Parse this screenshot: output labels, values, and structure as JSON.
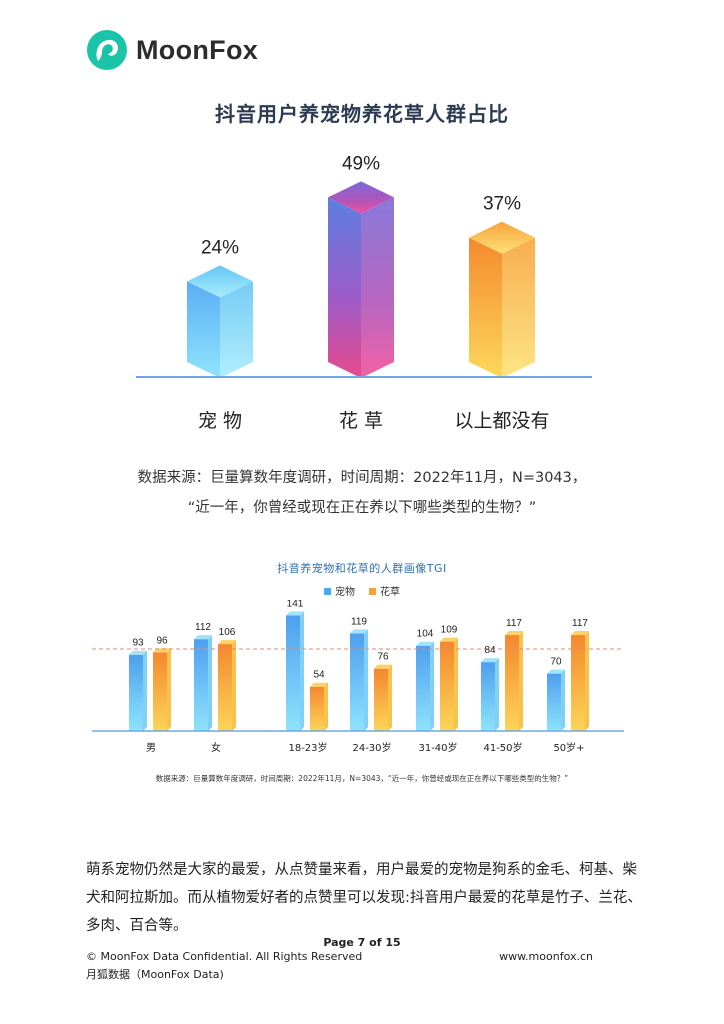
{
  "brand": {
    "name": "MoonFox",
    "logo_color": "#19c4a8"
  },
  "chart1": {
    "title": "抖音用户养宠物养花草人群占比",
    "source_line1": "数据来源：巨量算数年度调研，时间周期：2022年11月，N=3043，",
    "source_line2": "“近一年，你曾经或现在正在养以下哪些类型的生物？”"
  },
  "chart2": {
    "title": "抖音养宠物和花草的人群画像TGI",
    "source": "数据来源：巨量算数年度调研，时间周期：2022年11月，N=3043，“近一年，你曾经或现在正在养以下哪些类型的生物？”"
  },
  "chart_data": [
    {
      "type": "bar",
      "title": "抖音用户养宠物养花草人群占比",
      "categories": [
        "宠 物",
        "花 草",
        "以上都没有"
      ],
      "values": [
        24,
        49,
        37
      ],
      "value_labels": [
        "24%",
        "49%",
        "37%"
      ],
      "unit": "%",
      "colors": [
        "#5fc8f2",
        "#9a58c8",
        "#f7a43a"
      ],
      "grid": false,
      "legend": "none"
    },
    {
      "type": "bar",
      "title": "抖音养宠物和花草的人群画像TGI",
      "categories": [
        "男",
        "女",
        "18-23岁",
        "24-30岁",
        "31-40岁",
        "41-50岁",
        "50岁+"
      ],
      "series": [
        {
          "name": "宠物",
          "values": [
            93,
            112,
            141,
            119,
            104,
            84,
            70
          ],
          "color": "#4fa8ee"
        },
        {
          "name": "花草",
          "values": [
            96,
            106,
            54,
            76,
            109,
            117,
            117
          ],
          "color": "#f6a23c"
        }
      ],
      "reference_line": 100,
      "grid": false,
      "legend": "top-center"
    }
  ],
  "body_text": "萌系宠物仍然是大家的最爱，从点赞量来看，用户最爱的宠物是狗系的金毛、柯基、柴犬和阿拉斯加。而从植物爱好者的点赞里可以发现:抖音用户最爱的花草是竹子、兰花、多肉、百合等。",
  "footer": {
    "page": "Page 7 of 15",
    "confidential": "© MoonFox Data Confidential. All Rights Reserved",
    "company": "月狐数据（MoonFox Data)",
    "url": "www.moonfox.cn"
  }
}
